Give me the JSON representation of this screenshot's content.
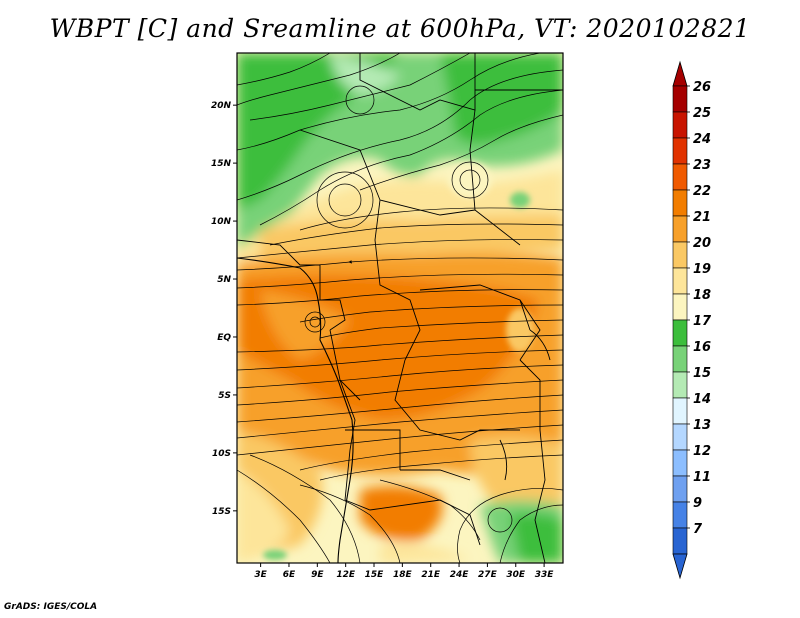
{
  "title": "WBPT [C] and Sreamline at 600hPa, VT: 2020102821",
  "credit": "GrADS: IGES/COLA",
  "map": {
    "lat_labels": [
      "20N",
      "15N",
      "10N",
      "5N",
      "EQ",
      "5S",
      "10S",
      "15S"
    ],
    "lat_values": [
      20,
      15,
      10,
      5,
      0,
      -5,
      -10,
      -15
    ],
    "lon_labels": [
      "3E",
      "6E",
      "9E",
      "12E",
      "15E",
      "18E",
      "21E",
      "24E",
      "27E",
      "30E",
      "33E"
    ],
    "lon_values": [
      3,
      6,
      9,
      12,
      15,
      18,
      21,
      24,
      27,
      30,
      33
    ],
    "lon_range": [
      0.5,
      35
    ],
    "lat_range": [
      -19.5,
      24.5
    ]
  },
  "colorbar": {
    "labels": [
      "26",
      "25",
      "24",
      "23",
      "22",
      "21",
      "20",
      "19",
      "18",
      "17",
      "16",
      "15",
      "14",
      "13",
      "12",
      "11",
      "9",
      "7"
    ],
    "colors": [
      "#a50000",
      "#c81400",
      "#e13200",
      "#f05a00",
      "#f27d00",
      "#f7a02a",
      "#fac864",
      "#fde59a",
      "#fcf5c0",
      "#3cbe3c",
      "#78d278",
      "#b4eab4",
      "#e1f5ff",
      "#b4d7ff",
      "#8cbeff",
      "#6ea0f0",
      "#4682e6",
      "#2864d2"
    ],
    "top_arrow_color": "#a50000",
    "bottom_arrow_color": "#2864d2"
  }
}
